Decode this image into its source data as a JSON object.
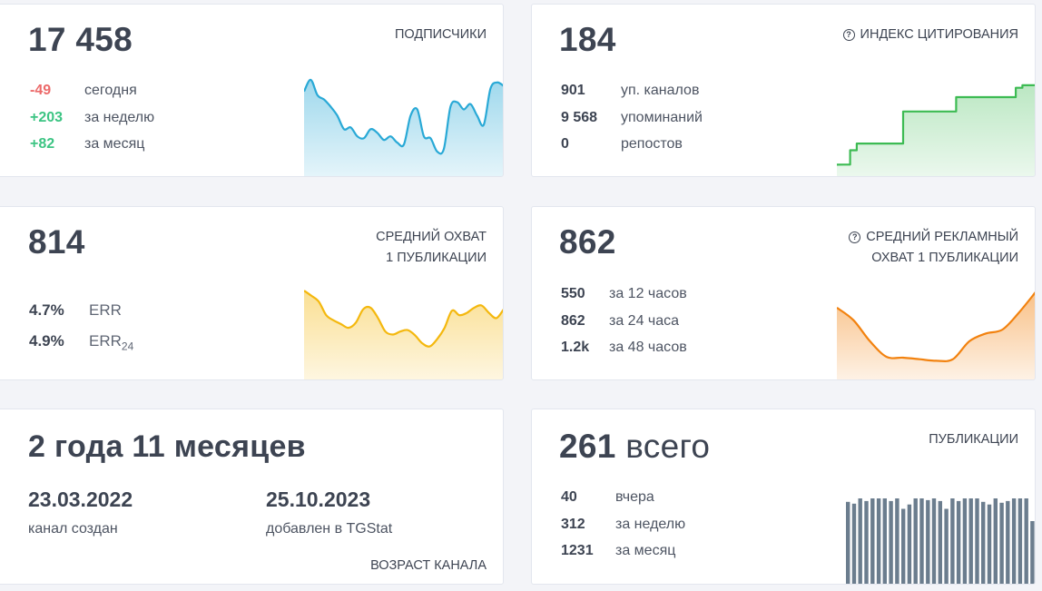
{
  "subscribers": {
    "value": "17 458",
    "title": "ПОДПИСЧИКИ",
    "rows": [
      {
        "value": "-49",
        "label": "сегодня",
        "tone": "neg"
      },
      {
        "value": "+203",
        "label": "за неделю",
        "tone": "pos"
      },
      {
        "value": "+82",
        "label": "за месяц",
        "tone": "pos"
      }
    ],
    "color": "#29a9d6",
    "series": [
      0.72,
      0.85,
      0.68,
      0.63,
      0.55,
      0.45,
      0.3,
      0.32,
      0.22,
      0.2,
      0.3,
      0.26,
      0.18,
      0.22,
      0.15,
      0.13,
      0.45,
      0.52,
      0.22,
      0.2,
      0.05,
      0.08,
      0.55,
      0.6,
      0.52,
      0.58,
      0.45,
      0.35,
      0.75,
      0.82,
      0.78
    ]
  },
  "citation": {
    "value": "184",
    "title": "ИНДЕКС ЦИТИРОВАНИЯ",
    "rows": [
      {
        "value": "901",
        "label": "уп. каналов"
      },
      {
        "value": "9 568",
        "label": "упоминаний"
      },
      {
        "value": "0",
        "label": "репостов"
      }
    ],
    "color": "#3dbb53",
    "series": [
      0.05,
      0.05,
      0.22,
      0.3,
      0.3,
      0.3,
      0.3,
      0.3,
      0.3,
      0.3,
      0.68,
      0.68,
      0.68,
      0.68,
      0.68,
      0.68,
      0.68,
      0.68,
      0.85,
      0.85,
      0.85,
      0.85,
      0.85,
      0.85,
      0.85,
      0.85,
      0.85,
      0.96,
      0.99,
      0.99,
      0.99
    ]
  },
  "reach": {
    "value": "814",
    "title_line1": "СРЕДНИЙ ОХВАТ",
    "title_line2": "1 ПУБЛИКАЦИИ",
    "err": {
      "value": "4.7%",
      "label": "ERR"
    },
    "err24": {
      "value": "4.9%",
      "label": "ERR",
      "sub": "24"
    },
    "color": "#f4b80e",
    "series": [
      0.95,
      0.88,
      0.8,
      0.62,
      0.55,
      0.5,
      0.45,
      0.52,
      0.7,
      0.72,
      0.58,
      0.4,
      0.36,
      0.4,
      0.42,
      0.35,
      0.24,
      0.2,
      0.3,
      0.45,
      0.68,
      0.62,
      0.65,
      0.72,
      0.75,
      0.65,
      0.58,
      0.7
    ]
  },
  "ad_reach": {
    "value": "862",
    "title_line1": "СРЕДНИЙ РЕКЛАМНЫЙ",
    "title_line2": "ОХВАТ 1 ПУБЛИКАЦИИ",
    "rows": [
      {
        "value": "550",
        "label": "за 12 часов"
      },
      {
        "value": "862",
        "label": "за 24 часа"
      },
      {
        "value": "1.2k",
        "label": "за 48 часов"
      }
    ],
    "color": "#f2820f",
    "series": [
      0.78,
      0.62,
      0.35,
      0.15,
      0.14,
      0.12,
      0.1,
      0.12,
      0.35,
      0.45,
      0.5,
      0.72,
      0.98
    ]
  },
  "age": {
    "value": "2 года 11 месяцев",
    "created_date": "23.03.2022",
    "created_label": "канал создан",
    "added_date": "25.10.2023",
    "added_label": "добавлен в TGStat",
    "title": "ВОЗРАСТ КАНАЛА"
  },
  "posts": {
    "value": "261",
    "suffix": "всего",
    "title": "ПУБЛИКАЦИИ",
    "rows": [
      {
        "value": "40",
        "label": "вчера"
      },
      {
        "value": "312",
        "label": "за неделю"
      },
      {
        "value": "1231",
        "label": "за месяц"
      }
    ],
    "color": "#6b7d8e",
    "bars": [
      0.96,
      0.94,
      1.0,
      0.97,
      1.0,
      1.0,
      1.0,
      0.97,
      1.0,
      0.88,
      0.93,
      1.0,
      1.0,
      0.98,
      1.0,
      0.97,
      0.88,
      1.0,
      0.97,
      1.0,
      1.0,
      1.0,
      0.96,
      0.93,
      1.0,
      0.95,
      0.97,
      1.0,
      1.0,
      1.0,
      0.74
    ]
  }
}
